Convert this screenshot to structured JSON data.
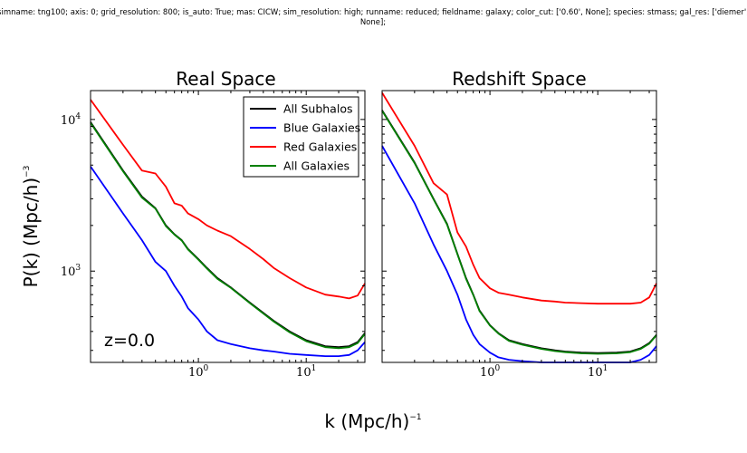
{
  "header": {
    "line1": "simname: tng100; axis: 0; grid_resolution: 800; is_auto: True; mas: CICW; sim_resolution: high; runname: reduced; fieldname: galaxy; color_cut: ['0.60', None]; species: stmass; gal_res: ['diemer',",
    "line2": "None];"
  },
  "chart_data": {
    "type": "line",
    "xlabel": "k (Mpc/h)",
    "xlabel_exp": "−1",
    "ylabel": "P(k) (Mpc/h)",
    "ylabel_exp": "−3",
    "xscale": "log",
    "yscale": "log",
    "xlim": [
      0.1,
      35
    ],
    "ylim": [
      250,
      15500
    ],
    "xticks": [
      {
        "value": 1,
        "base": "10",
        "exp": "0"
      },
      {
        "value": 10,
        "base": "10",
        "exp": "1"
      }
    ],
    "yticks": [
      {
        "value": 1000,
        "base": "10",
        "exp": "3"
      },
      {
        "value": 10000,
        "base": "10",
        "exp": "4"
      }
    ],
    "annotation": "z=0.0",
    "legend_position": "top-right",
    "colors": {
      "All Subhalos": "#000000",
      "Blue Galaxies": "#0000ff",
      "Red Galaxies": "#ff0000",
      "All Galaxies": "#008000"
    },
    "panels": [
      {
        "title": "Real Space",
        "x": [
          0.1,
          0.2,
          0.3,
          0.4,
          0.5,
          0.6,
          0.7,
          0.8,
          1.0,
          1.2,
          1.5,
          2,
          3,
          4,
          5,
          7,
          10,
          15,
          20,
          25,
          30,
          35
        ],
        "series": [
          {
            "name": "All Subhalos",
            "values": [
              9600,
              4600,
              3100,
              2600,
              2000,
              1750,
              1600,
              1400,
              1200,
              1050,
              900,
              780,
              620,
              530,
              470,
              400,
              350,
              320,
              315,
              320,
              340,
              390
            ]
          },
          {
            "name": "Blue Galaxies",
            "values": [
              4900,
              2400,
              1600,
              1150,
              1000,
              800,
              680,
              570,
              480,
              400,
              350,
              330,
              310,
              300,
              295,
              285,
              280,
              275,
              275,
              280,
              300,
              340
            ]
          },
          {
            "name": "Red Galaxies",
            "values": [
              13500,
              6800,
              4600,
              4400,
              3600,
              2800,
              2700,
              2400,
              2200,
              2000,
              1850,
              1700,
              1400,
              1200,
              1050,
              900,
              780,
              700,
              680,
              660,
              690,
              830
            ]
          },
          {
            "name": "All Galaxies",
            "values": [
              9500,
              4550,
              3050,
              2580,
              1980,
              1740,
              1590,
              1390,
              1190,
              1040,
              890,
              775,
              615,
              525,
              465,
              395,
              345,
              315,
              310,
              315,
              335,
              385
            ]
          }
        ]
      },
      {
        "title": "Redshift Space",
        "x": [
          0.1,
          0.2,
          0.3,
          0.4,
          0.5,
          0.6,
          0.7,
          0.8,
          1.0,
          1.2,
          1.5,
          2,
          3,
          4,
          5,
          7,
          10,
          15,
          20,
          25,
          30,
          35
        ],
        "series": [
          {
            "name": "All Subhalos",
            "values": [
              11500,
              5200,
              3000,
              2050,
              1300,
              900,
              700,
              550,
              440,
              390,
              350,
              330,
              310,
              300,
              295,
              290,
              288,
              290,
              295,
              310,
              335,
              380
            ]
          },
          {
            "name": "Blue Galaxies",
            "values": [
              6700,
              2800,
              1500,
              1000,
              700,
              480,
              380,
              330,
              290,
              270,
              260,
              255,
              250,
              250,
              250,
              250,
              250,
              250,
              250,
              260,
              280,
              320
            ]
          },
          {
            "name": "Red Galaxies",
            "values": [
              15000,
              6700,
              3800,
              3200,
              1800,
              1450,
              1100,
              900,
              770,
              720,
              700,
              670,
              640,
              630,
              620,
              615,
              610,
              610,
              610,
              620,
              670,
              830
            ]
          },
          {
            "name": "All Galaxies",
            "values": [
              11400,
              5150,
              2980,
              2030,
              1290,
              890,
              695,
              545,
              437,
              387,
              347,
              327,
              307,
              297,
              292,
              287,
              285,
              287,
              292,
              307,
              332,
              377
            ]
          }
        ]
      }
    ]
  }
}
